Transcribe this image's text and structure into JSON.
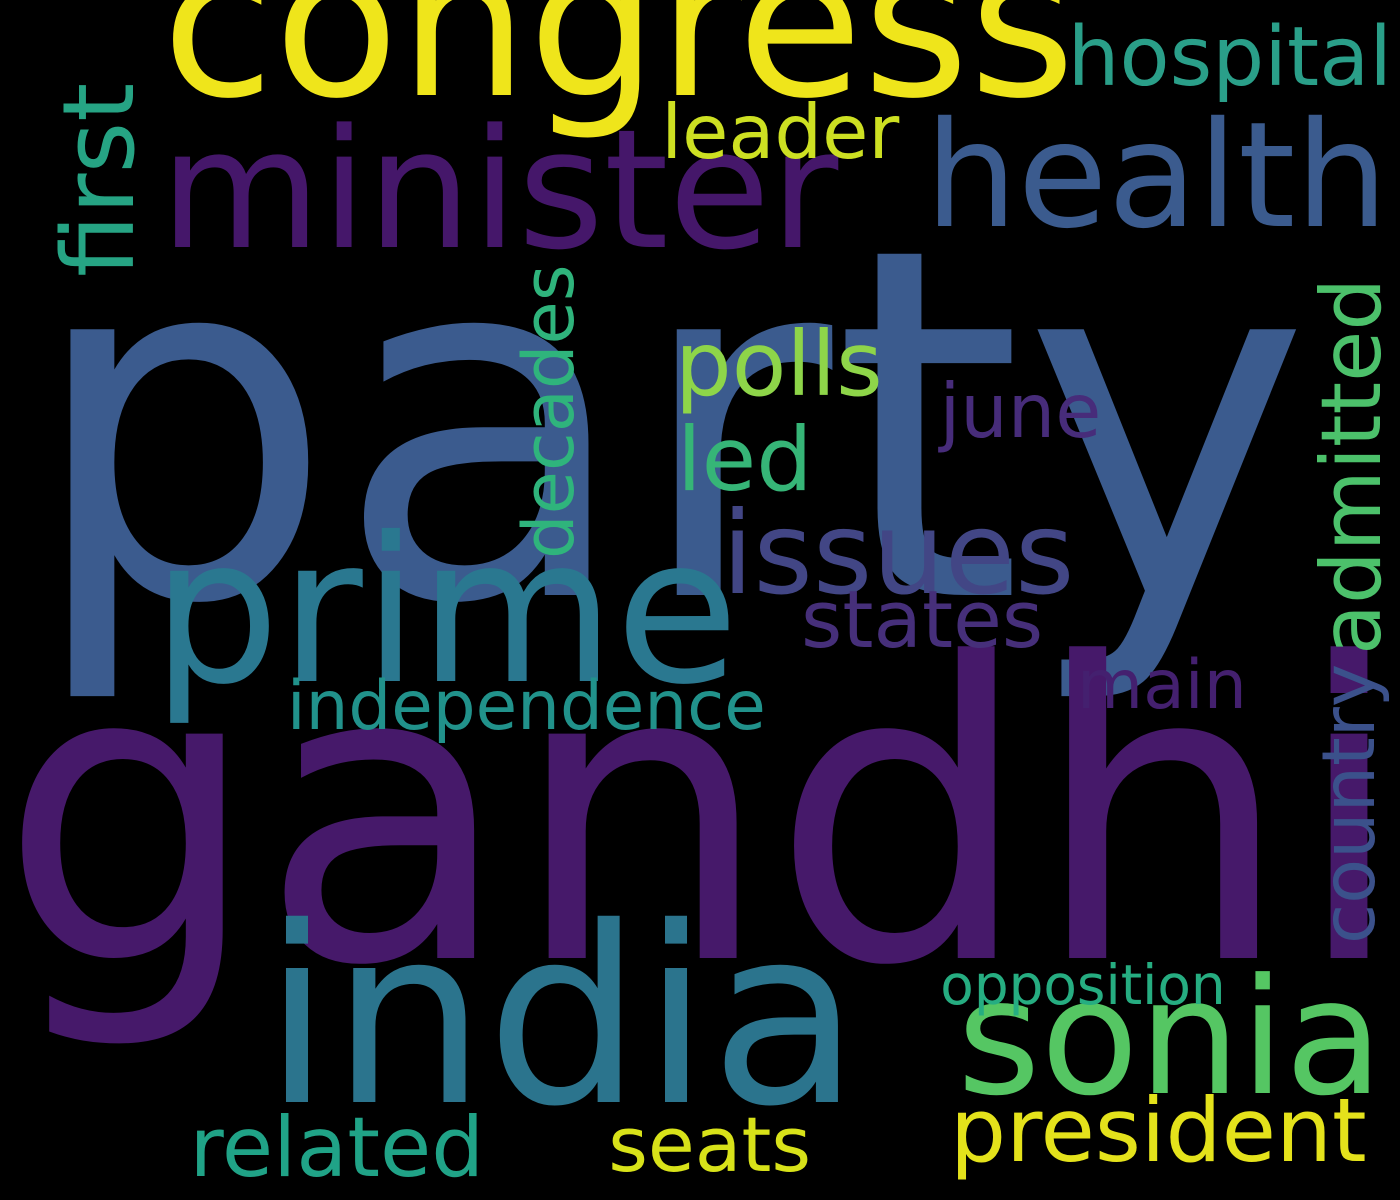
{
  "background_color": "#000000",
  "words": [
    {
      "key": "party",
      "text": "party",
      "color": "#3b5b8e"
    },
    {
      "key": "gandhi",
      "text": "gandhi",
      "color": "#46196a"
    },
    {
      "key": "congress",
      "text": "congress",
      "color": "#efe51b"
    },
    {
      "key": "minister",
      "text": "minister",
      "color": "#45176a"
    },
    {
      "key": "health",
      "text": "health",
      "color": "#3b5b8e"
    },
    {
      "key": "prime",
      "text": "prime",
      "color": "#2a7890"
    },
    {
      "key": "india",
      "text": "india",
      "color": "#2b748d"
    },
    {
      "key": "sonia",
      "text": "sonia",
      "color": "#55c663"
    },
    {
      "key": "issues",
      "text": "issues",
      "color": "#424685"
    },
    {
      "key": "president",
      "text": "president",
      "color": "#e4e21b"
    },
    {
      "key": "hospital",
      "text": "hospital",
      "color": "#2a9f89"
    },
    {
      "key": "leader",
      "text": "leader",
      "color": "#cde022"
    },
    {
      "key": "polls",
      "text": "polls",
      "color": "#8ed549"
    },
    {
      "key": "june",
      "text": "june",
      "color": "#472c7a"
    },
    {
      "key": "led",
      "text": "led",
      "color": "#36b577"
    },
    {
      "key": "states",
      "text": "states",
      "color": "#462f7a"
    },
    {
      "key": "independence",
      "text": "independence",
      "color": "#21928b"
    },
    {
      "key": "main",
      "text": "main",
      "color": "#44206f"
    },
    {
      "key": "opposition",
      "text": "opposition",
      "color": "#26ad81"
    },
    {
      "key": "related",
      "text": "related",
      "color": "#20a387"
    },
    {
      "key": "seats",
      "text": "seats",
      "color": "#d8e219"
    },
    {
      "key": "first",
      "text": "first",
      "color": "#26a484"
    },
    {
      "key": "decades",
      "text": "decades",
      "color": "#2fb47c"
    },
    {
      "key": "admitted",
      "text": "admitted",
      "color": "#4cc16b"
    },
    {
      "key": "country",
      "text": "country",
      "color": "#3b518b"
    }
  ]
}
